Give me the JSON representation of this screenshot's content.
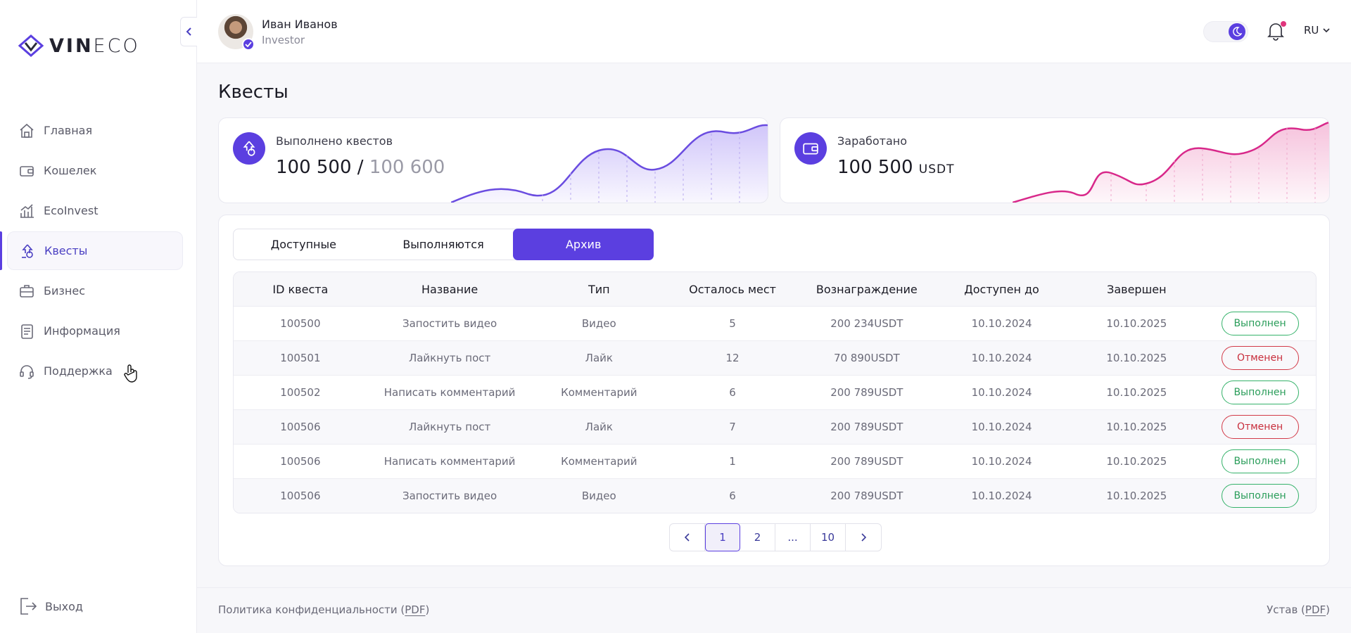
{
  "brand": {
    "logo_bold": "VIN",
    "logo_light": "ECO"
  },
  "sidebar": {
    "items": [
      {
        "label": "Главная",
        "icon": "home-icon"
      },
      {
        "label": "Кошелек",
        "icon": "wallet-icon"
      },
      {
        "label": "EcoInvest",
        "icon": "chart-bars-icon"
      },
      {
        "label": "Квесты",
        "icon": "quest-icon",
        "active": true
      },
      {
        "label": "Бизнес",
        "icon": "briefcase-icon"
      },
      {
        "label": "Информация",
        "icon": "document-icon"
      },
      {
        "label": "Поддержка",
        "icon": "headset-icon"
      }
    ],
    "logout_label": "Выход"
  },
  "header": {
    "user_name": "Иван Иванов",
    "user_role": "Investor",
    "language": "RU"
  },
  "page": {
    "title": "Квесты"
  },
  "stats": {
    "quests": {
      "label": "Выполнено квестов",
      "done": "100 500",
      "separator": " / ",
      "total": "100 600"
    },
    "earned": {
      "label": "Заработано",
      "value": "100 500",
      "unit": "USDT"
    }
  },
  "tabs": [
    {
      "label": "Доступные"
    },
    {
      "label": "Выполняются"
    },
    {
      "label": "Архив",
      "active": true
    }
  ],
  "table": {
    "columns": [
      "ID квеста",
      "Название",
      "Тип",
      "Осталось мест",
      "Вознаграждение",
      "Доступен до",
      "Завершен",
      ""
    ],
    "rows": [
      {
        "id": "100500",
        "name": "Запостить видео",
        "type": "Видео",
        "seats": "5",
        "reward": "200 234USDT",
        "available": "10.10.2024",
        "finished": "10.10.2025",
        "status": "Выполнен",
        "ok": true
      },
      {
        "id": "100501",
        "name": "Лайкнуть пост",
        "type": "Лайк",
        "seats": "12",
        "reward": "70 890USDT",
        "available": "10.10.2024",
        "finished": "10.10.2025",
        "status": "Отменен",
        "ok": false
      },
      {
        "id": "100502",
        "name": "Написать комментарий",
        "type": "Комментарий",
        "seats": "6",
        "reward": "200 789USDT",
        "available": "10.10.2024",
        "finished": "10.10.2025",
        "status": "Выполнен",
        "ok": true
      },
      {
        "id": "100506",
        "name": "Лайкнуть пост",
        "type": "Лайк",
        "seats": "7",
        "reward": "200 789USDT",
        "available": "10.10.2024",
        "finished": "10.10.2025",
        "status": "Отменен",
        "ok": false
      },
      {
        "id": "100506",
        "name": "Написать комментарий",
        "type": "Комментарий",
        "seats": "1",
        "reward": "200 789USDT",
        "available": "10.10.2024",
        "finished": "10.10.2025",
        "status": "Выполнен",
        "ok": true
      },
      {
        "id": "100506",
        "name": "Запостить видео",
        "type": "Видео",
        "seats": "6",
        "reward": "200 789USDT",
        "available": "10.10.2024",
        "finished": "10.10.2025",
        "status": "Выполнен",
        "ok": true
      }
    ]
  },
  "pagination": {
    "pages": [
      "1",
      "2",
      "...",
      "10"
    ],
    "current": "1"
  },
  "footer": {
    "privacy_label": "Политика конфиденциальности (",
    "privacy_pdf": "PDF",
    "close": ")",
    "charter_label": "Устав (",
    "charter_pdf": "PDF"
  },
  "colors": {
    "accent": "#5b3fe0",
    "success": "#2a9d5a",
    "danger": "#c82e3c",
    "chart_purple": "#7a5cf0",
    "chart_pink": "#e0348c"
  }
}
